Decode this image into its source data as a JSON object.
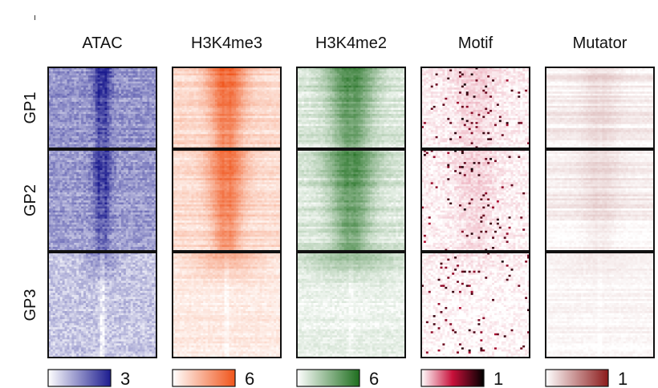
{
  "chart_data": {
    "type": "heatmap",
    "title": "",
    "columns": [
      {
        "label": "ATAC",
        "cmap": [
          "#ffffff",
          "#1c1c8f"
        ],
        "legend_max": "3",
        "base": 0.46,
        "center": 0.6,
        "width": 0.06,
        "noise": 0.14,
        "streak": 0.07,
        "speckle": false
      },
      {
        "label": "H3K4me3",
        "cmap": [
          "#ffffff",
          "#f0541a"
        ],
        "legend_max": "6",
        "base": 0.22,
        "center": 0.72,
        "width": 0.13,
        "noise": 0.06,
        "streak": 0.1,
        "speckle": false
      },
      {
        "label": "H3K4me2",
        "cmap": [
          "#ffffff",
          "#1e6e1e"
        ],
        "legend_max": "6",
        "base": 0.16,
        "center": 0.7,
        "width": 0.17,
        "noise": 0.06,
        "streak": 0.1,
        "speckle": false
      },
      {
        "label": "Motif",
        "cmap": [
          "#ffffff",
          "#c8103a",
          "#000000"
        ],
        "legend_max": "1",
        "base": 0.03,
        "center": 0.08,
        "width": 0.16,
        "noise": 0.05,
        "streak": 0.02,
        "speckle": true
      },
      {
        "label": "Mutator",
        "cmap": [
          "#ffffff",
          "#8b1a1a"
        ],
        "legend_max": "1",
        "base": 0.07,
        "center": 0.12,
        "width": 0.14,
        "noise": 0.03,
        "streak": 0.08,
        "speckle": false
      }
    ],
    "rows": [
      {
        "label": "GP1",
        "weight": 1.0
      },
      {
        "label": "GP2",
        "weight": 0.95
      },
      {
        "label": "GP3",
        "weight": 0.35
      }
    ],
    "x_center_fraction": 0.5,
    "legend_min": ""
  }
}
